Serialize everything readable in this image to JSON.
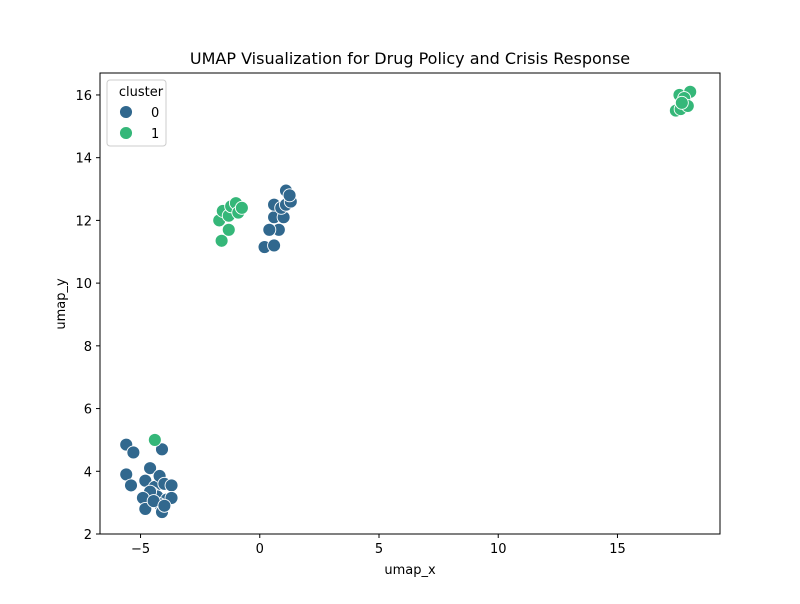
{
  "chart_data": {
    "type": "scatter",
    "title": "UMAP Visualization for Drug Policy and Crisis Response",
    "xlabel": "umap_x",
    "ylabel": "umap_y",
    "xlim": [
      -6.7,
      19.3
    ],
    "ylim": [
      2.0,
      16.7
    ],
    "x_ticks": [
      -5,
      0,
      5,
      10,
      15
    ],
    "y_ticks": [
      2,
      4,
      6,
      8,
      10,
      12,
      14,
      16
    ],
    "grid": false,
    "legend": {
      "title": "cluster",
      "placement": "top-left",
      "entries": [
        "0",
        "1"
      ]
    },
    "series": [
      {
        "name": "0",
        "color": "#31688e",
        "points": [
          [
            -5.6,
            4.85
          ],
          [
            -5.3,
            4.6
          ],
          [
            -4.1,
            4.7
          ],
          [
            -5.6,
            3.9
          ],
          [
            -5.4,
            3.55
          ],
          [
            -4.6,
            4.1
          ],
          [
            -4.8,
            3.7
          ],
          [
            -4.4,
            3.5
          ],
          [
            -4.2,
            3.85
          ],
          [
            -4.0,
            3.6
          ],
          [
            -3.7,
            3.55
          ],
          [
            -4.5,
            3.3
          ],
          [
            -4.3,
            3.2
          ],
          [
            -4.6,
            3.35
          ],
          [
            -4.9,
            3.15
          ],
          [
            -3.9,
            3.1
          ],
          [
            -3.7,
            3.15
          ],
          [
            -4.2,
            2.95
          ],
          [
            -4.8,
            2.8
          ],
          [
            -4.1,
            2.7
          ],
          [
            -4.45,
            3.05
          ],
          [
            -4.0,
            2.9
          ],
          [
            0.2,
            11.15
          ],
          [
            0.6,
            11.2
          ],
          [
            0.8,
            11.7
          ],
          [
            0.4,
            11.7
          ],
          [
            0.6,
            12.1
          ],
          [
            1.0,
            12.1
          ],
          [
            0.6,
            12.5
          ],
          [
            0.9,
            12.4
          ],
          [
            1.1,
            12.5
          ],
          [
            1.3,
            12.6
          ],
          [
            1.1,
            12.95
          ],
          [
            1.25,
            12.8
          ]
        ]
      },
      {
        "name": "1",
        "color": "#35b779",
        "points": [
          [
            -4.4,
            5.0
          ],
          [
            -1.7,
            12.0
          ],
          [
            -1.55,
            12.3
          ],
          [
            -1.3,
            12.15
          ],
          [
            -1.2,
            12.45
          ],
          [
            -1.0,
            12.55
          ],
          [
            -0.9,
            12.25
          ],
          [
            -0.75,
            12.4
          ],
          [
            -1.3,
            11.7
          ],
          [
            -1.6,
            11.35
          ],
          [
            17.6,
            16.0
          ],
          [
            18.05,
            16.1
          ],
          [
            17.8,
            15.9
          ],
          [
            17.45,
            15.5
          ],
          [
            17.65,
            15.55
          ],
          [
            17.95,
            15.65
          ],
          [
            17.7,
            15.75
          ]
        ]
      }
    ]
  }
}
